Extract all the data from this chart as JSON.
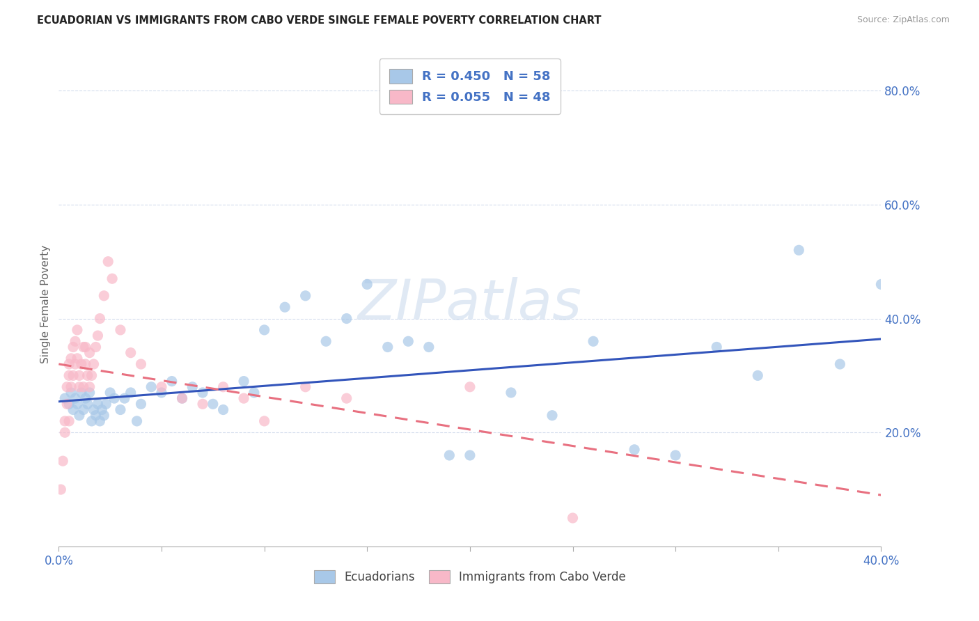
{
  "title": "ECUADORIAN VS IMMIGRANTS FROM CABO VERDE SINGLE FEMALE POVERTY CORRELATION CHART",
  "source": "Source: ZipAtlas.com",
  "ylabel": "Single Female Poverty",
  "xlim": [
    0.0,
    0.4
  ],
  "ylim": [
    0.0,
    0.85
  ],
  "xtick_vals": [
    0.0,
    0.05,
    0.1,
    0.15,
    0.2,
    0.25,
    0.3,
    0.35,
    0.4
  ],
  "xtick_show_labels": [
    0.0,
    0.4
  ],
  "xtick_labels_map": {
    "0.0": "0.0%",
    "0.4": "40.0%"
  },
  "ytick_vals": [
    0.2,
    0.4,
    0.6,
    0.8
  ],
  "ytick_labels": [
    "20.0%",
    "40.0%",
    "60.0%",
    "80.0%"
  ],
  "ecuadorian_color": "#a8c8e8",
  "cabo_verde_color": "#f8b8c8",
  "trend_ecuadorian_color": "#3355bb",
  "trend_cabo_verde_color": "#e87080",
  "watermark_text": "ZIPatlas",
  "legend_r1": "R = 0.450",
  "legend_n1": "N = 58",
  "legend_r2": "R = 0.055",
  "legend_n2": "N = 48",
  "legend_label1": "Ecuadorians",
  "legend_label2": "Immigrants from Cabo Verde",
  "ecu_x": [
    0.003,
    0.005,
    0.006,
    0.007,
    0.008,
    0.009,
    0.01,
    0.011,
    0.012,
    0.013,
    0.014,
    0.015,
    0.016,
    0.017,
    0.018,
    0.019,
    0.02,
    0.021,
    0.022,
    0.023,
    0.025,
    0.027,
    0.03,
    0.032,
    0.035,
    0.038,
    0.04,
    0.045,
    0.05,
    0.055,
    0.06,
    0.065,
    0.07,
    0.075,
    0.08,
    0.09,
    0.095,
    0.1,
    0.11,
    0.12,
    0.13,
    0.14,
    0.15,
    0.16,
    0.17,
    0.18,
    0.19,
    0.2,
    0.22,
    0.24,
    0.26,
    0.28,
    0.3,
    0.32,
    0.34,
    0.36,
    0.38,
    0.4
  ],
  "ecu_y": [
    0.26,
    0.25,
    0.27,
    0.24,
    0.26,
    0.25,
    0.23,
    0.27,
    0.24,
    0.26,
    0.25,
    0.27,
    0.22,
    0.24,
    0.23,
    0.25,
    0.22,
    0.24,
    0.23,
    0.25,
    0.27,
    0.26,
    0.24,
    0.26,
    0.27,
    0.22,
    0.25,
    0.28,
    0.27,
    0.29,
    0.26,
    0.28,
    0.27,
    0.25,
    0.24,
    0.29,
    0.27,
    0.38,
    0.42,
    0.44,
    0.36,
    0.4,
    0.46,
    0.35,
    0.36,
    0.35,
    0.16,
    0.16,
    0.27,
    0.23,
    0.36,
    0.17,
    0.16,
    0.35,
    0.3,
    0.52,
    0.32,
    0.46
  ],
  "cv_x": [
    0.001,
    0.002,
    0.003,
    0.003,
    0.004,
    0.004,
    0.005,
    0.005,
    0.005,
    0.006,
    0.006,
    0.007,
    0.007,
    0.008,
    0.008,
    0.009,
    0.009,
    0.01,
    0.01,
    0.011,
    0.012,
    0.012,
    0.013,
    0.013,
    0.014,
    0.015,
    0.015,
    0.016,
    0.017,
    0.018,
    0.019,
    0.02,
    0.022,
    0.024,
    0.026,
    0.03,
    0.035,
    0.04,
    0.05,
    0.06,
    0.07,
    0.08,
    0.09,
    0.1,
    0.12,
    0.14,
    0.2,
    0.25
  ],
  "cv_y": [
    0.1,
    0.15,
    0.2,
    0.22,
    0.25,
    0.28,
    0.22,
    0.3,
    0.32,
    0.28,
    0.33,
    0.3,
    0.35,
    0.32,
    0.36,
    0.33,
    0.38,
    0.28,
    0.3,
    0.32,
    0.35,
    0.28,
    0.32,
    0.35,
    0.3,
    0.28,
    0.34,
    0.3,
    0.32,
    0.35,
    0.37,
    0.4,
    0.44,
    0.5,
    0.47,
    0.38,
    0.34,
    0.32,
    0.28,
    0.26,
    0.25,
    0.28,
    0.26,
    0.22,
    0.28,
    0.26,
    0.28,
    0.05
  ]
}
